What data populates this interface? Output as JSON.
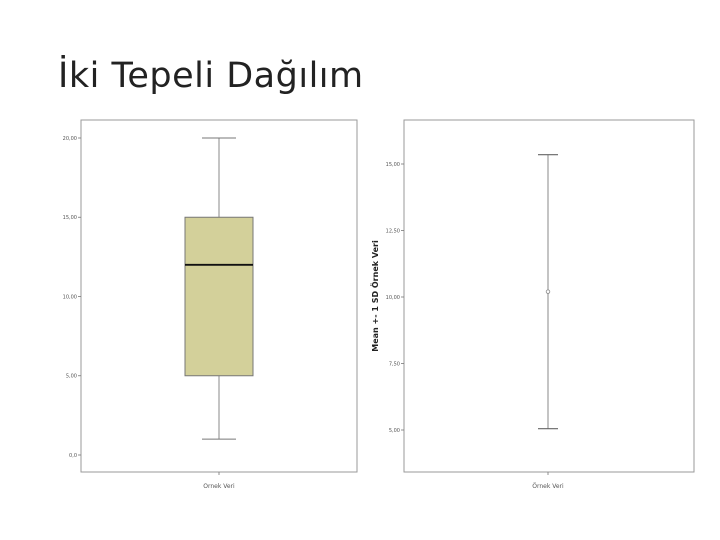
{
  "slide": {
    "title": "İki Tepeli Dağılım"
  },
  "chart_data": [
    {
      "type": "boxplot",
      "categories": [
        "Ornek Veri"
      ],
      "ylim": [
        0,
        20
      ],
      "yticks": [
        "0,0",
        "5,00",
        "10,00",
        "15,00",
        "20,00"
      ],
      "ytick_values": [
        0,
        5,
        10,
        15,
        20
      ],
      "stats": {
        "min": 1,
        "q1": 5,
        "median": 12,
        "q3": 15,
        "max": 20
      },
      "xlabel": "",
      "ylabel": "",
      "box_color": "#d3d09a",
      "grid": false
    },
    {
      "type": "errorbar",
      "categories": [
        "Örnek Veri"
      ],
      "ylim": [
        3.5,
        16.2
      ],
      "yticks": [
        "5,00",
        "7,50",
        "10,00",
        "12,50",
        "15,00"
      ],
      "ytick_values": [
        5,
        7.5,
        10,
        12.5,
        15
      ],
      "mean": 10.2,
      "upper": 15.35,
      "lower": 5.05,
      "ylabel": "Mean +- 1 SD Örnek Veri",
      "xlabel": "",
      "grid": false
    }
  ]
}
